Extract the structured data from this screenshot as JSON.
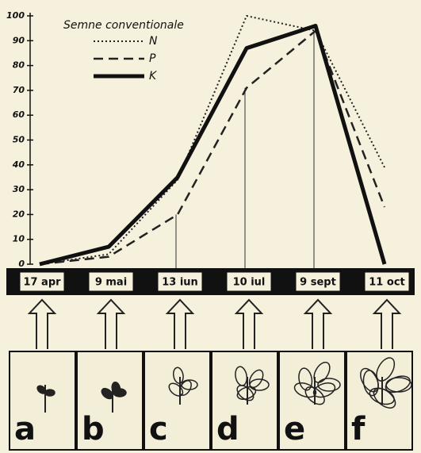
{
  "chart_data": {
    "type": "line",
    "legend_title": "Semne conventionale",
    "categories": [
      "17 apr",
      "9 mai",
      "13 iun",
      "10 iul",
      "9 sept",
      "11 oct"
    ],
    "series": [
      {
        "name": "N",
        "color": "#222",
        "dash": "dotted",
        "values": [
          0,
          4,
          34,
          100,
          94,
          39
        ]
      },
      {
        "name": "P",
        "color": "#222",
        "dash": "dashed",
        "values": [
          0,
          3,
          20,
          71,
          94,
          23
        ]
      },
      {
        "name": "K",
        "color": "#111",
        "dash": "solid",
        "values": [
          0,
          7,
          35,
          87,
          96,
          0
        ]
      }
    ],
    "ylim": [
      0,
      100
    ],
    "yticks": [
      0,
      10,
      20,
      30,
      40,
      50,
      60,
      70,
      80,
      90,
      100
    ],
    "panels": [
      "a",
      "b",
      "c",
      "d",
      "e",
      "f"
    ]
  }
}
